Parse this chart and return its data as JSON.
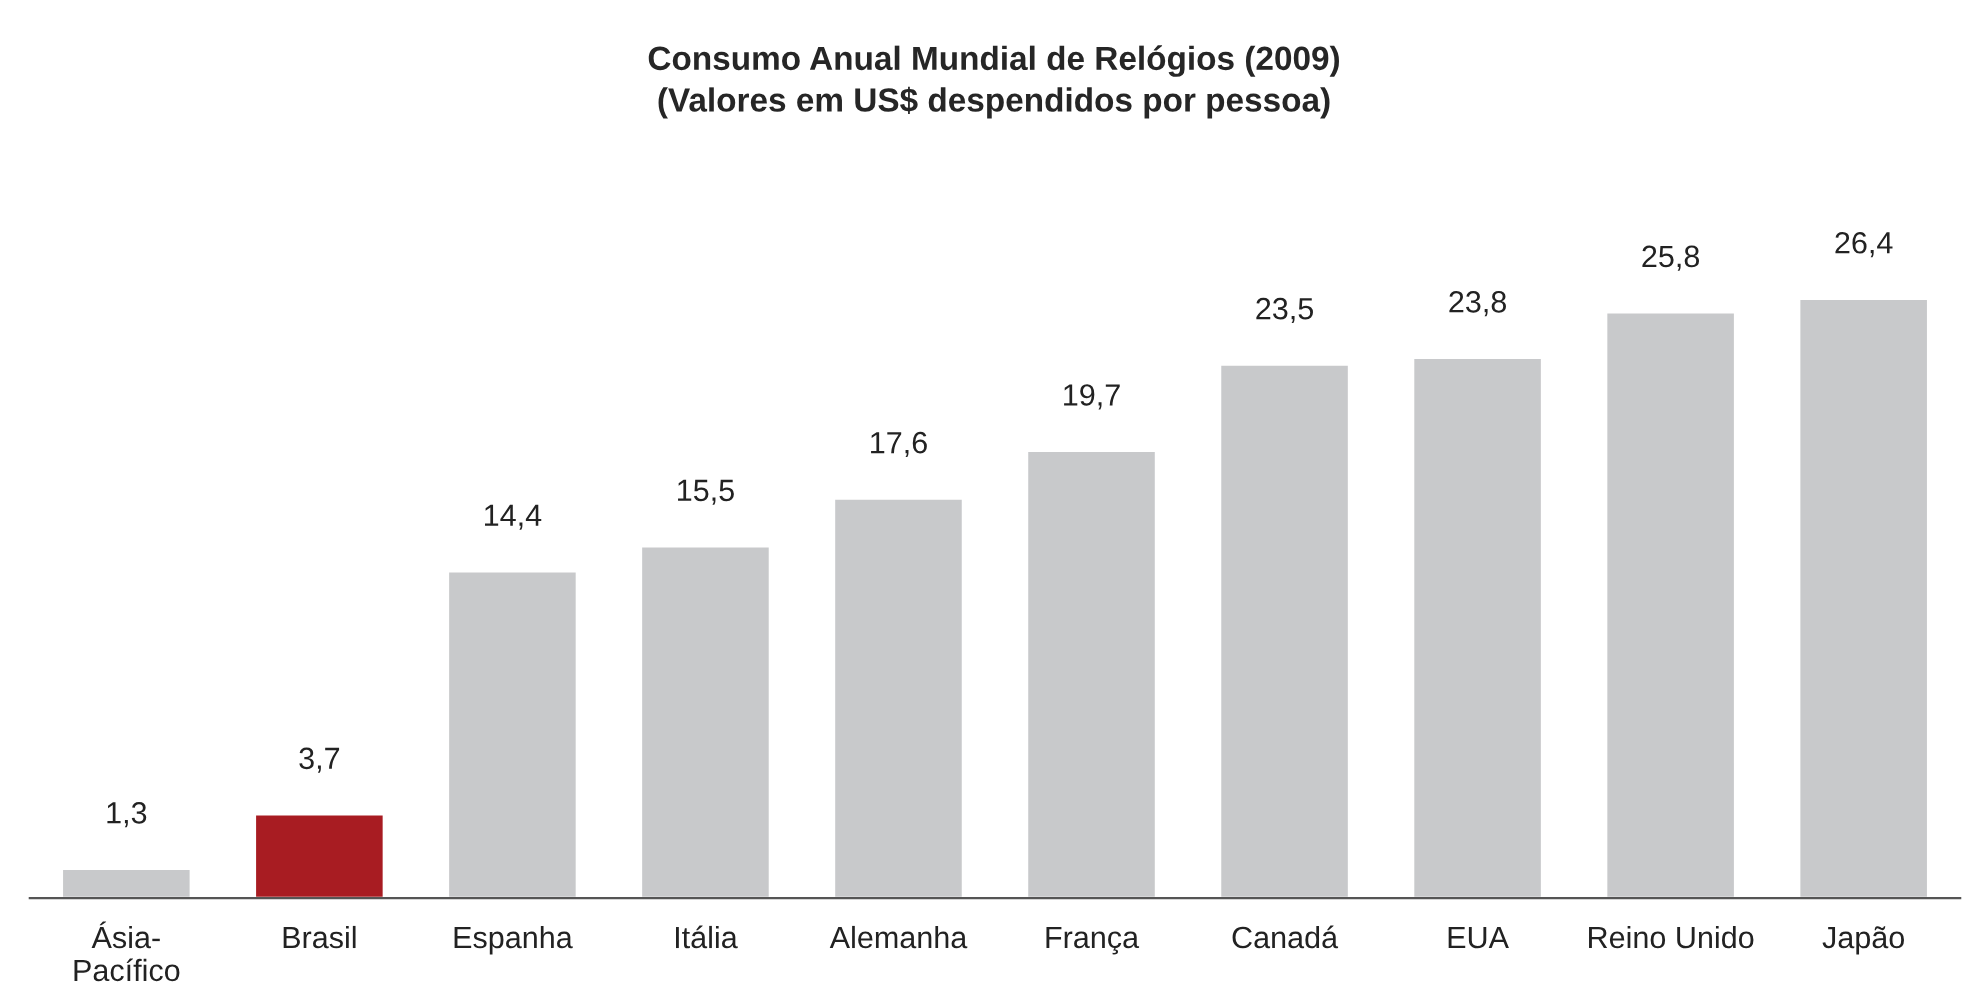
{
  "chart_data": {
    "type": "bar",
    "title": "Consumo Anual Mundial de Relógios (2009)\n(Valores em US$ despendidos por pessoa)",
    "categories": [
      "Ásia-\nPacífico",
      "Brasil",
      "Espanha",
      "Itália",
      "Alemanha",
      "França",
      "Canadá",
      "EUA",
      "Reino Unido",
      "Japão"
    ],
    "values": [
      1.3,
      3.7,
      14.4,
      15.5,
      17.6,
      19.7,
      23.5,
      23.8,
      25.8,
      26.4
    ],
    "colors": [
      "#c8c9cb",
      "#a81c22",
      "#c8c9cb",
      "#c8c9cb",
      "#c8c9cb",
      "#c8c9cb",
      "#c8c9cb",
      "#c8c9cb",
      "#c8c9cb",
      "#c8c9cb"
    ],
    "value_labels": [
      "1,3",
      "3,7",
      "14,4",
      "15,5",
      "17,6",
      "19,7",
      "23,5",
      "23,8",
      "25,8",
      "26,4"
    ]
  }
}
